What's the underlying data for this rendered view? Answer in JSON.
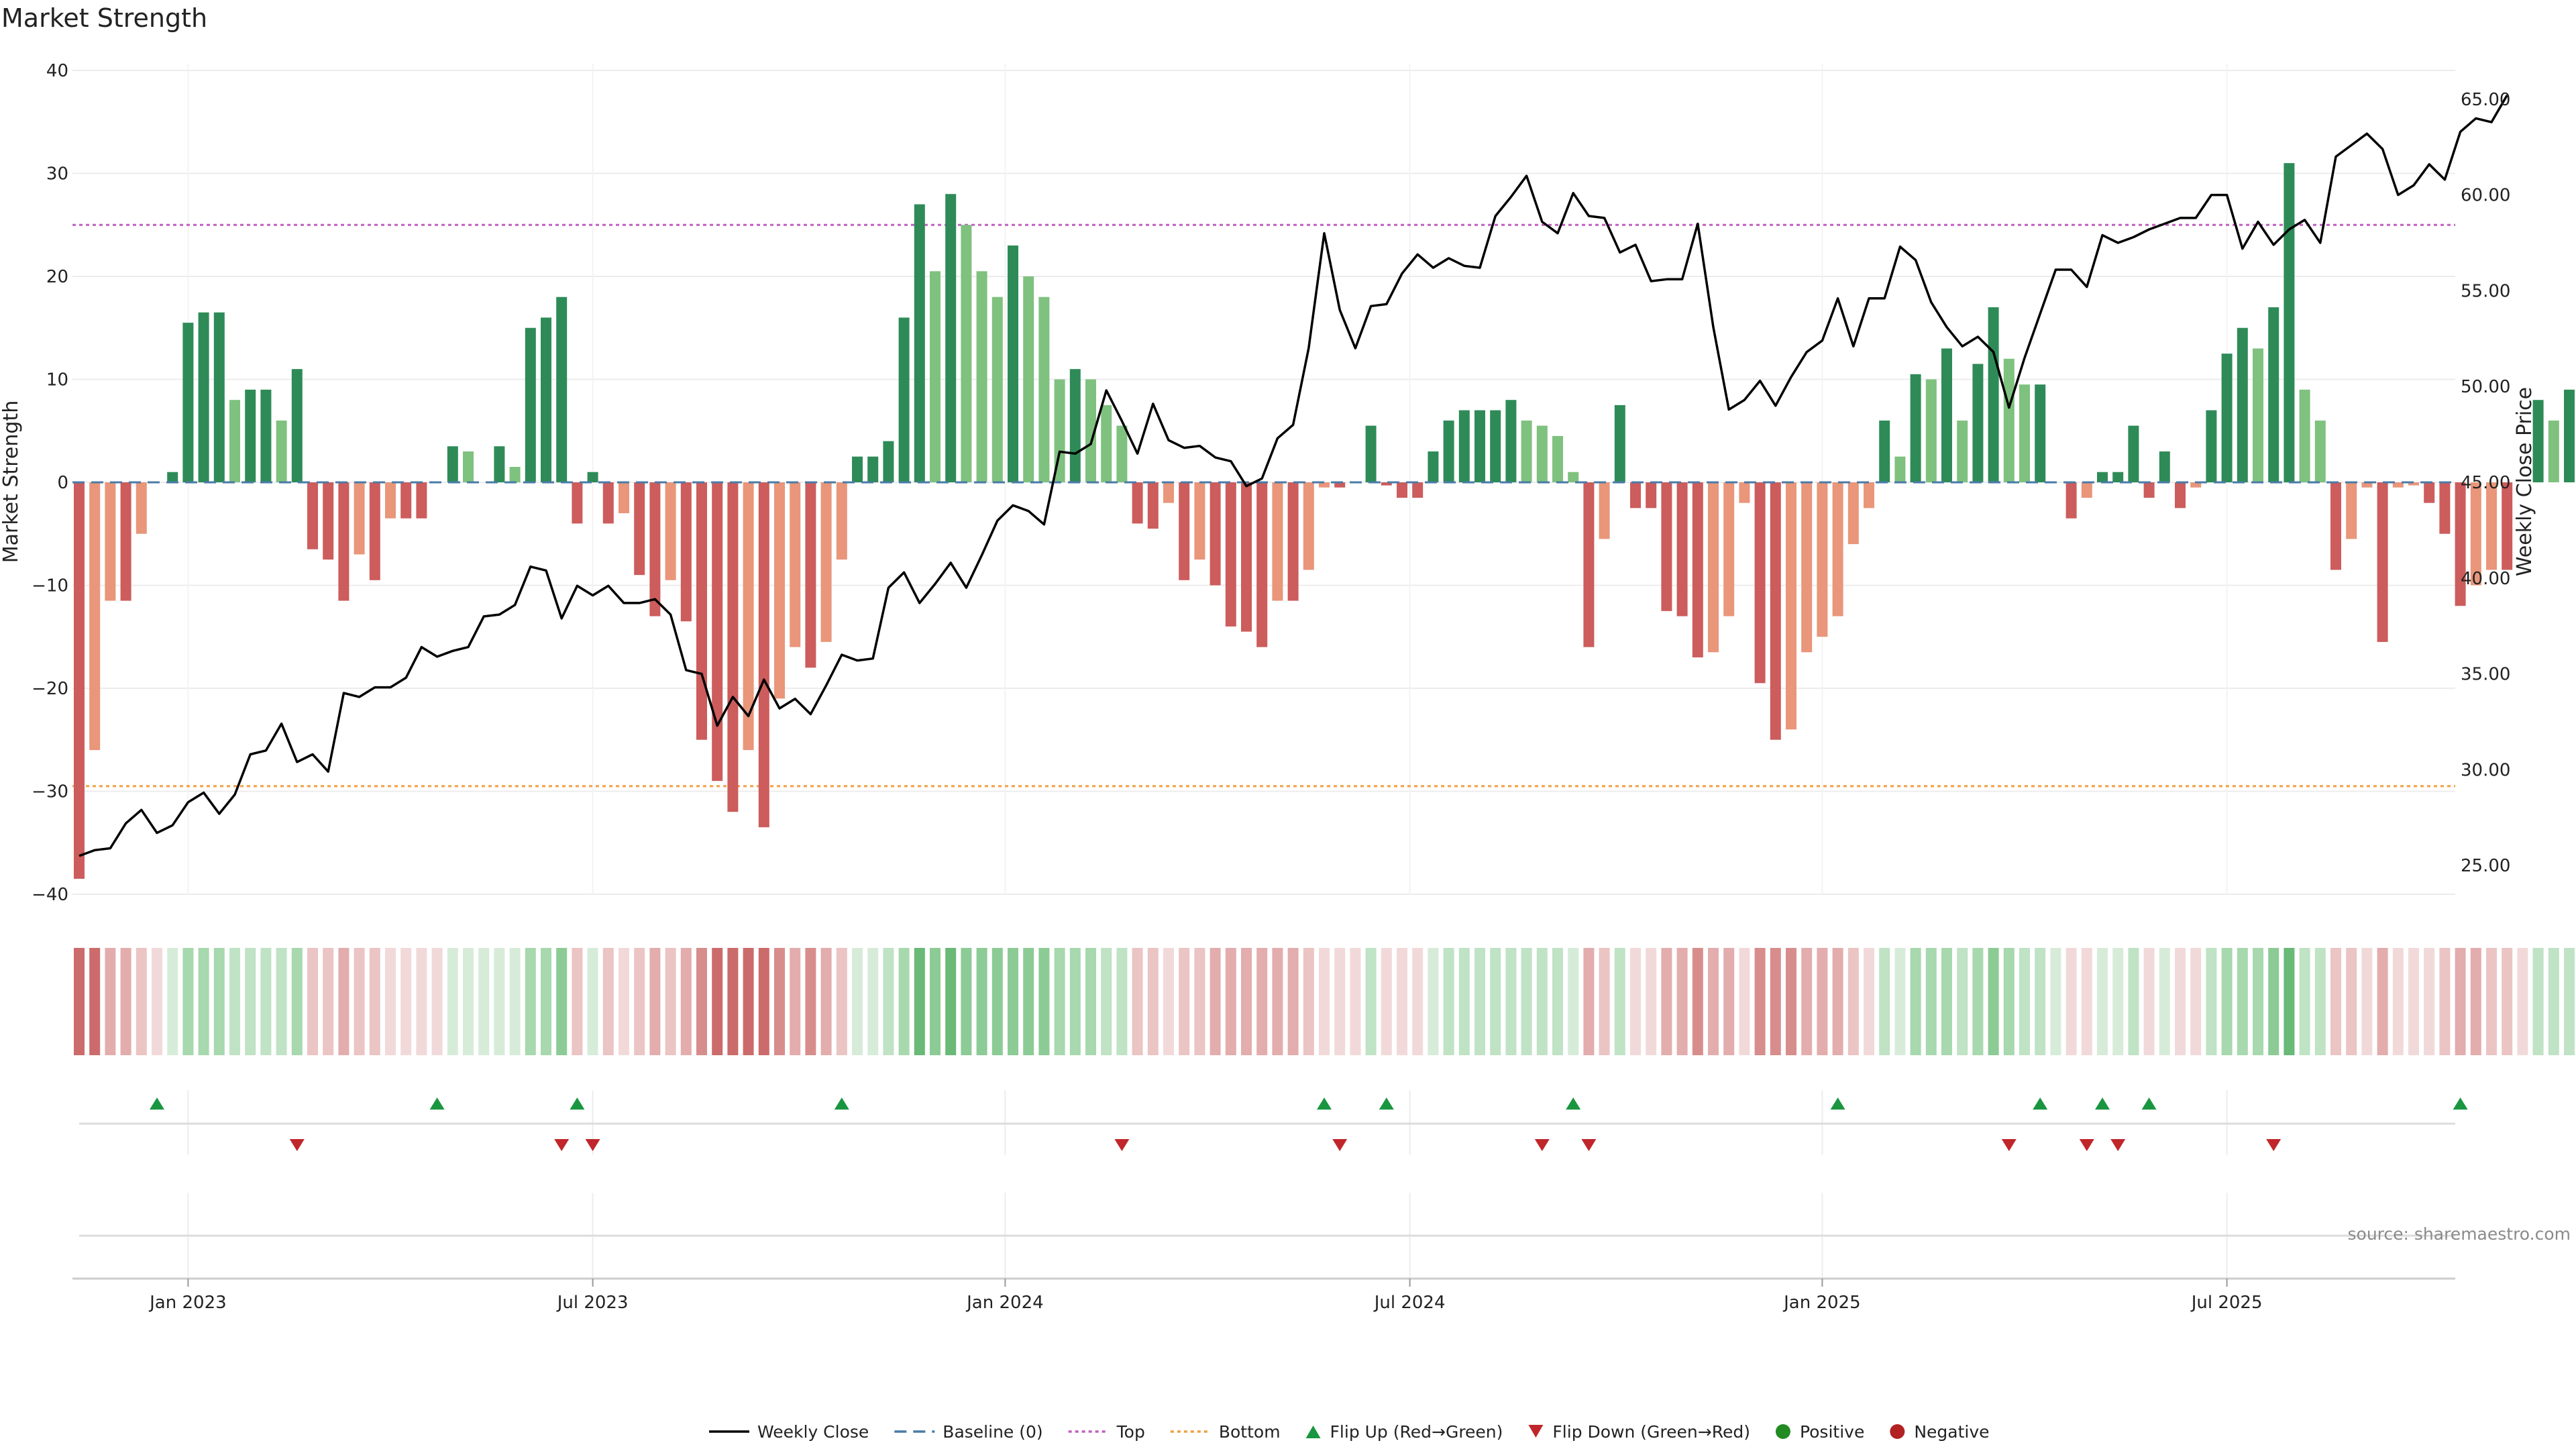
{
  "chart_data": {
    "type": "bar",
    "title": "Market Strength",
    "ylabel_left": "Market Strength",
    "ylabel_right": "Weekly Close Price",
    "ylim_left": [
      -40,
      40
    ],
    "ylim_right": [
      23.5,
      66.5
    ],
    "yticks_left": [
      40,
      30,
      20,
      10,
      0,
      -10,
      -20,
      -30,
      -40
    ],
    "yticks_left_labels": [
      "40",
      "30",
      "20",
      "10",
      "0",
      "−10",
      "−20",
      "−30",
      "−40"
    ],
    "yticks_right": [
      65,
      60,
      55,
      50,
      45,
      40,
      35,
      30,
      25
    ],
    "yticks_right_labels": [
      "65.00",
      "60.00",
      "55.00",
      "50.00",
      "45.00",
      "40.00",
      "35.00",
      "30.00",
      "25.00"
    ],
    "top_threshold": 25,
    "bottom_threshold": -29.5,
    "x_ticks": [
      {
        "week": 7,
        "label": "Jan 2023"
      },
      {
        "week": 33,
        "label": "Jul 2023"
      },
      {
        "week": 59.5,
        "label": "Jan 2024"
      },
      {
        "week": 85.5,
        "label": "Jul 2024"
      },
      {
        "week": 112,
        "label": "Jan 2025"
      },
      {
        "week": 138,
        "label": "Jul 2025"
      }
    ],
    "strength": [
      -38.5,
      -26,
      -11.5,
      -11.5,
      -5,
      0,
      1,
      15.5,
      16.5,
      16.5,
      8,
      9,
      9,
      6,
      11,
      -6.5,
      -7.5,
      -11.5,
      -7,
      -9.5,
      -3.5,
      -3.5,
      -3.5,
      0,
      3.5,
      3,
      0,
      3.5,
      1.5,
      15,
      16,
      18,
      -4,
      1,
      -4,
      -3,
      -9,
      -13,
      -9.5,
      -13.5,
      -25,
      -29,
      -32,
      -26,
      -33.5,
      -21,
      -16,
      -18,
      -15.5,
      -7.5,
      2.5,
      2.5,
      4,
      16,
      27,
      20.5,
      28,
      25,
      20.5,
      18,
      23,
      20,
      18,
      10,
      11,
      10,
      7.5,
      5.5,
      -4,
      -4.5,
      -2,
      -9.5,
      -7.5,
      -10,
      -14,
      -14.5,
      -16,
      -11.5,
      -11.5,
      -8.5,
      -0.5,
      -0.5,
      0,
      5.5,
      -0.3,
      -1.5,
      -1.5,
      3,
      6,
      7,
      7,
      7,
      8,
      6,
      5.5,
      4.5,
      1,
      -16,
      -5.5,
      7.5,
      -2.5,
      -2.5,
      -12.5,
      -13,
      -17,
      -16.5,
      -13,
      -2,
      -19.5,
      -25,
      -24,
      -16.5,
      -15,
      -13,
      -6,
      -2.5,
      6,
      2.5,
      10.5,
      10,
      13,
      6,
      11.5,
      17,
      12,
      9.5,
      9.5,
      0,
      -3.5,
      -1.5,
      1,
      1,
      5.5,
      -1.5,
      3,
      -2.5,
      -0.5,
      7,
      12.5,
      15,
      13,
      17,
      31,
      9,
      6,
      -8.5,
      -5.5,
      -0.5,
      -15.5,
      -0.5,
      -0.3,
      -2,
      -5,
      -12,
      -10,
      -8.5,
      -8.5,
      0,
      8,
      6,
      9,
      8.5
    ],
    "close": [
      25.5,
      25.8,
      25.9,
      27.2,
      27.9,
      26.7,
      27.1,
      28.3,
      28.8,
      27.7,
      28.7,
      30.8,
      31.0,
      32.4,
      30.4,
      30.8,
      29.9,
      34.0,
      33.8,
      34.3,
      34.3,
      34.8,
      36.4,
      35.9,
      36.2,
      36.4,
      38.0,
      38.1,
      38.6,
      40.6,
      40.4,
      37.9,
      39.6,
      39.1,
      39.6,
      38.7,
      38.7,
      38.9,
      38.1,
      35.2,
      35.0,
      32.3,
      33.8,
      32.8,
      34.7,
      33.2,
      33.7,
      32.9,
      34.4,
      36.0,
      35.7,
      35.8,
      39.5,
      40.3,
      38.7,
      39.7,
      40.8,
      39.5,
      41.2,
      43.0,
      43.8,
      43.5,
      42.8,
      46.6,
      46.5,
      47.0,
      49.8,
      48.2,
      46.5,
      49.1,
      47.2,
      46.8,
      46.9,
      46.3,
      46.1,
      44.8,
      45.2,
      47.3,
      48.0,
      52.0,
      58.0,
      54.0,
      52.0,
      54.2,
      54.3,
      55.9,
      56.9,
      56.2,
      56.7,
      56.3,
      56.2,
      58.9,
      59.9,
      61.0,
      58.6,
      58.0,
      60.1,
      58.9,
      58.8,
      57.0,
      57.4,
      55.5,
      55.6,
      55.6,
      58.5,
      53.1,
      48.8,
      49.3,
      50.3,
      49.0,
      50.5,
      51.8,
      52.4,
      54.6,
      52.1,
      54.6,
      54.6,
      57.3,
      56.6,
      54.4,
      53.1,
      52.1,
      52.6,
      51.8,
      48.9,
      51.5,
      53.8,
      56.1,
      56.1,
      55.2,
      57.9,
      57.5,
      57.8,
      58.2,
      58.5,
      58.8,
      58.8,
      60.0,
      60.0,
      57.2,
      58.6,
      57.4,
      58.2,
      58.7,
      57.5,
      62.0,
      62.6,
      63.2,
      62.4,
      60.0,
      60.5,
      61.6,
      60.8,
      63.3,
      64.0,
      63.8,
      65.2
    ],
    "heat_strip": {
      "neg_colors": [
        "#f2d9d9",
        "#ebc4c4",
        "#e3adad",
        "#d88d8d",
        "#cc6b6b"
      ],
      "pos_colors": [
        "#d6ecd9",
        "#bfe3c4",
        "#a7d8ae",
        "#8ccb95",
        "#69b977"
      ]
    },
    "flip_up_weeks": [
      5,
      23,
      32,
      49,
      80,
      84,
      96,
      113,
      126,
      130,
      133,
      153
    ],
    "flip_down_weeks": [
      14,
      31,
      33,
      67,
      81,
      94,
      97,
      124,
      129,
      131,
      141
    ],
    "colors": {
      "pos_strong": "#2e8b57",
      "pos_weak": "#7fc17f",
      "neg_strong": "#cd5c5c",
      "neg_weak": "#e9967a",
      "close_line": "#000000",
      "baseline": "#4a7ba7",
      "top_line": "#c060c0",
      "bottom_line": "#f0a040",
      "flip_up": "#1a9641",
      "flip_down": "#c0262a",
      "positive_dot": "#228b22",
      "negative_dot": "#b22222"
    },
    "legend": [
      {
        "key": "close",
        "label": "Weekly Close"
      },
      {
        "key": "baseline",
        "label": "Baseline (0)"
      },
      {
        "key": "top",
        "label": "Top"
      },
      {
        "key": "bottom",
        "label": "Bottom"
      },
      {
        "key": "flip_up",
        "label": "Flip Up (Red→Green)"
      },
      {
        "key": "flip_down",
        "label": "Flip Down (Green→Red)"
      },
      {
        "key": "positive",
        "label": "Positive"
      },
      {
        "key": "negative",
        "label": "Negative"
      }
    ],
    "legend_position": "bottom-center",
    "grid": true,
    "source": "source: sharemaestro.com"
  }
}
